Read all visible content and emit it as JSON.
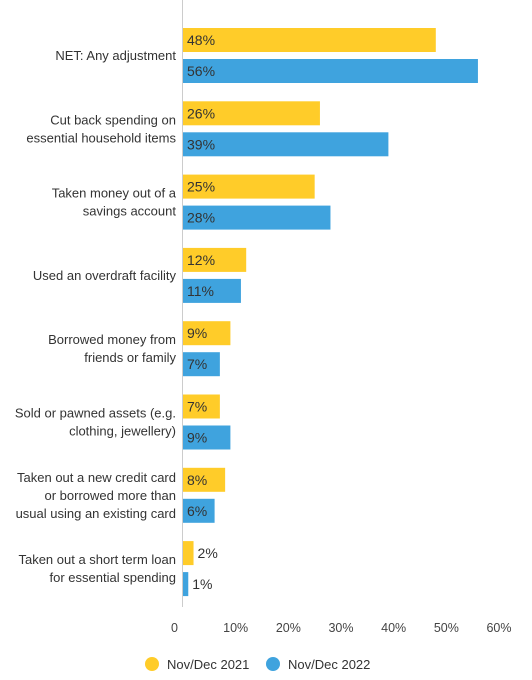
{
  "chart_data": {
    "type": "bar",
    "orientation": "horizontal",
    "categories": [
      [
        "NET: Any adjustment"
      ],
      [
        "Cut back spending on",
        "essential household items"
      ],
      [
        "Taken money out of a",
        "savings account"
      ],
      [
        "Used an overdraft facility"
      ],
      [
        "Borrowed money from",
        "friends or family"
      ],
      [
        "Sold or pawned assets (e.g.",
        "clothing, jewellery)"
      ],
      [
        "Taken out a new credit card",
        "or borrowed more than",
        "usual using an existing card"
      ],
      [
        "Taken out a short term loan",
        "for essential spending"
      ]
    ],
    "series": [
      {
        "name": "Nov/Dec 2021",
        "color": "#FFCC29",
        "values": [
          48,
          26,
          25,
          12,
          9,
          7,
          8,
          2
        ],
        "labels": [
          "48%",
          "26%",
          "25%",
          "12%",
          "9%",
          "7%",
          "8%",
          "2%"
        ]
      },
      {
        "name": "Nov/Dec 2022",
        "color": "#3FA3DE",
        "values": [
          56,
          39,
          28,
          11,
          7,
          9,
          6,
          1
        ],
        "labels": [
          "56%",
          "39%",
          "28%",
          "11%",
          "7%",
          "9%",
          "6%",
          "1%"
        ]
      }
    ],
    "xlim": [
      0,
      60
    ],
    "xticks": [
      0,
      10,
      20,
      30,
      40,
      50,
      60
    ],
    "xtick_labels": [
      "0",
      "10%",
      "20%",
      "30%",
      "40%",
      "50%",
      "60%"
    ],
    "grid": false,
    "legend": "bottom-center",
    "axis_color": "#CCCCCC"
  }
}
